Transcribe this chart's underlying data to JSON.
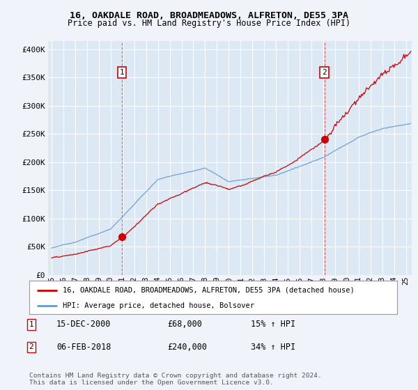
{
  "title1": "16, OAKDALE ROAD, BROADMEADOWS, ALFRETON, DE55 3PA",
  "title2": "Price paid vs. HM Land Registry's House Price Index (HPI)",
  "ylabel_ticks": [
    "£0",
    "£50K",
    "£100K",
    "£150K",
    "£200K",
    "£250K",
    "£300K",
    "£350K",
    "£400K"
  ],
  "ytick_values": [
    0,
    50000,
    100000,
    150000,
    200000,
    250000,
    300000,
    350000,
    400000
  ],
  "ylim": [
    0,
    415000
  ],
  "xlim_start": 1994.7,
  "xlim_end": 2025.5,
  "hpi_color": "#6699cc",
  "price_color": "#cc0000",
  "bg_color": "#f0f4fa",
  "plot_bg": "#dde8f5",
  "grid_color": "#ffffff",
  "legend_label1": "16, OAKDALE ROAD, BROADMEADOWS, ALFRETON, DE55 3PA (detached house)",
  "legend_label2": "HPI: Average price, detached house, Bolsover",
  "sale1_date": "15-DEC-2000",
  "sale1_price": "£68,000",
  "sale1_hpi": "15% ↑ HPI",
  "sale1_year": 2000.958,
  "sale1_value": 68000,
  "sale2_date": "06-FEB-2018",
  "sale2_price": "£240,000",
  "sale2_hpi": "34% ↑ HPI",
  "sale2_year": 2018.1,
  "sale2_value": 240000,
  "footnote1": "Contains HM Land Registry data © Crown copyright and database right 2024.",
  "footnote2": "This data is licensed under the Open Government Licence v3.0.",
  "xtick_years": [
    1995,
    1996,
    1997,
    1998,
    1999,
    2000,
    2001,
    2002,
    2003,
    2004,
    2005,
    2006,
    2007,
    2008,
    2009,
    2010,
    2011,
    2012,
    2013,
    2014,
    2015,
    2016,
    2017,
    2018,
    2019,
    2020,
    2021,
    2022,
    2023,
    2024,
    2025
  ]
}
